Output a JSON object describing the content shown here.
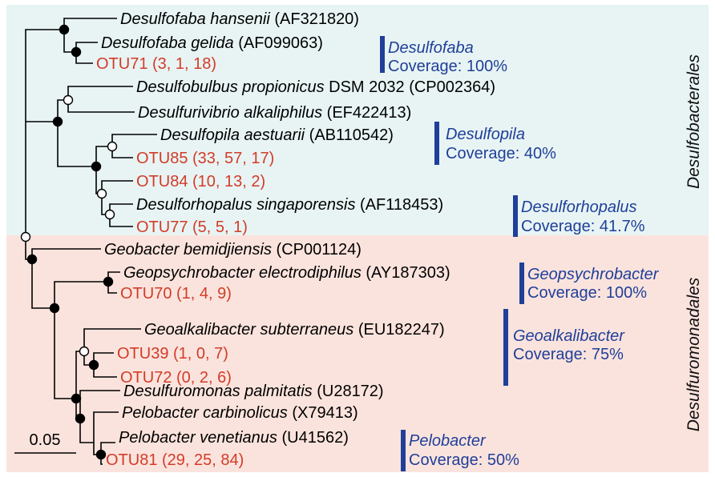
{
  "colors": {
    "desulfobacterales_bg": "#e8f4f4",
    "desulfuromonadales_bg": "#fbe3dd",
    "otu_text": "#d23c28",
    "genus_text": "#1f3f99",
    "bracket": "#1f3f99",
    "node_supported": "#000000",
    "node_unsupported": "#ffffff"
  },
  "scale_bar": {
    "label": "0.05"
  },
  "orders": [
    {
      "name": "Desulfobacterales"
    },
    {
      "name": "Desulfuromonadales"
    }
  ],
  "leaves": [
    {
      "name": "Desulfofaba hansenii",
      "accession": " (AF321820)",
      "kind": "reference"
    },
    {
      "name": "Desulfofaba gelida",
      "accession": " (AF099063)",
      "kind": "reference"
    },
    {
      "label": "OTU71 (3, 1, 18)",
      "kind": "otu"
    },
    {
      "name": "Desulfobulbus propionicus",
      "accession": " DSM 2032 (CP002364)",
      "kind": "reference"
    },
    {
      "name": "Desulfurivibrio alkaliphilus",
      "accession": " (EF422413)",
      "kind": "reference"
    },
    {
      "name": "Desulfopila aestuarii",
      "accession": " (AB110542)",
      "kind": "reference"
    },
    {
      "label": "OTU85 (33, 57, 17)",
      "kind": "otu"
    },
    {
      "label": "OTU84 (10, 13, 2)",
      "kind": "otu"
    },
    {
      "name": "Desulforhopalus singaporensis",
      "accession": " (AF118453)",
      "kind": "reference"
    },
    {
      "label": "OTU77 (5, 5, 1)",
      "kind": "otu"
    },
    {
      "name": "Geobacter bemidjiensis",
      "accession": " (CP001124)",
      "kind": "reference"
    },
    {
      "name": "Geopsychrobacter electrodiphilus",
      "accession": " (AY187303)",
      "kind": "reference"
    },
    {
      "label": "OTU70 (1, 4, 9)",
      "kind": "otu"
    },
    {
      "name": "Geoalkalibacter subterraneus",
      "accession": " (EU182247)",
      "kind": "reference"
    },
    {
      "label": "OTU39 (1, 0, 7)",
      "kind": "otu"
    },
    {
      "label": "OTU72 (0, 2, 6)",
      "kind": "otu"
    },
    {
      "name": "Desulfuromonas palmitatis",
      "accession": " (U28172)",
      "kind": "reference"
    },
    {
      "name": "Pelobacter carbinolicus",
      "accession": " (X79413)",
      "kind": "reference"
    },
    {
      "name": "Pelobacter venetianus",
      "accession": " (U41562)",
      "kind": "reference"
    },
    {
      "label": "OTU81 (29, 25, 84)",
      "kind": "otu"
    }
  ],
  "genus_groups": [
    {
      "genus": "Desulfofaba",
      "coverage": "Coverage: 100%"
    },
    {
      "genus": "Desulfopila",
      "coverage": "Coverage: 40%"
    },
    {
      "genus": "Desulforhopalus",
      "coverage": "Coverage: 41.7%"
    },
    {
      "genus": "Geopsychrobacter",
      "coverage": "Coverage: 100%"
    },
    {
      "genus": "Geoalkalibacter",
      "coverage": "Coverage: 75%"
    },
    {
      "genus": "Pelobacter",
      "coverage": "Coverage: 50%"
    }
  ]
}
